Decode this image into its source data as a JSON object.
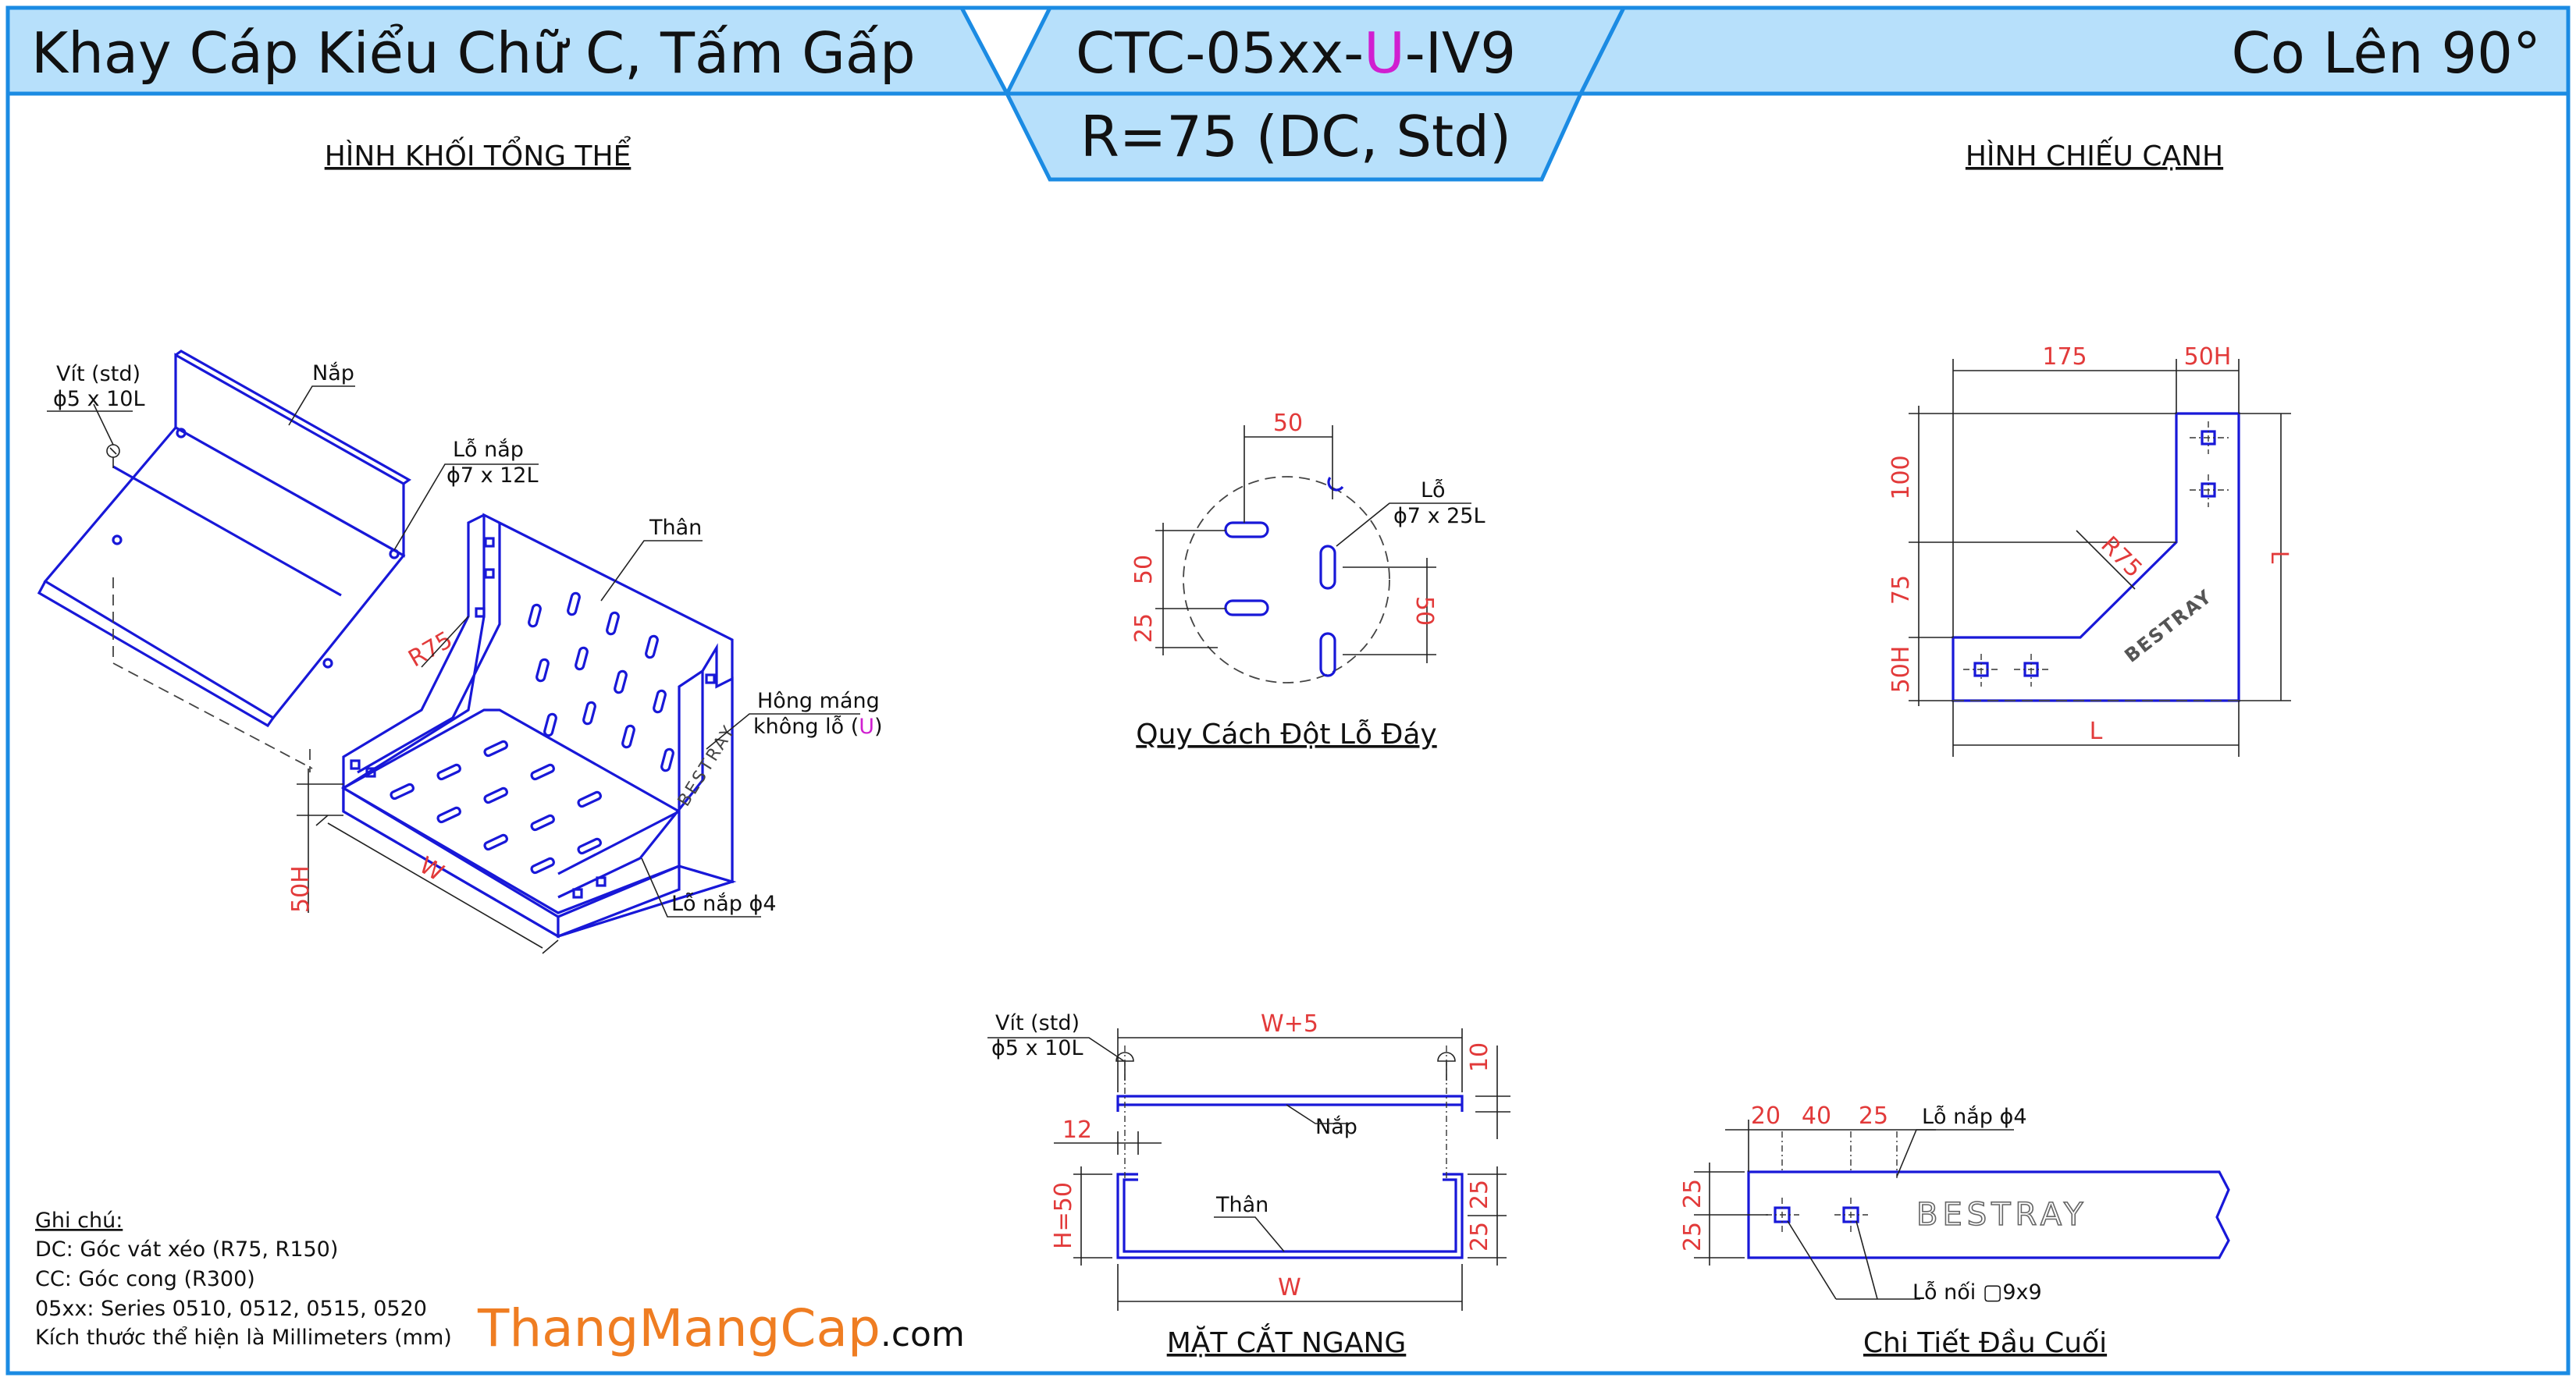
{
  "header": {
    "left_title": "Khay Cáp Kiểu Chữ C, Tấm Gấp",
    "code_prefix": "CTC-05xx-",
    "code_highlight": "U",
    "code_suffix": "-IV9",
    "radius_spec": "R=75 (DC, Std)",
    "right_title": "Co Lên 90°",
    "colors": {
      "band": "#b7e0fb",
      "border": "#1b8be3",
      "highlight": "#d01fd0"
    }
  },
  "views": {
    "iso_title": "HÌNH KHỐI TỔNG THỂ",
    "side_title": "HÌNH CHIẾU CẠNH",
    "hole_title": "Quy Cách Đột Lỗ Đáy",
    "section_title": "MẶT CẮT NGANG",
    "end_title": "Chi Tiết Đầu Cuối"
  },
  "iso": {
    "screw_label": "Vít (std)",
    "screw_size": "ϕ5 x 10L",
    "cover_label": "Nắp",
    "cover_hole_label": "Lỗ nắp",
    "cover_hole_size": "ϕ7 x 12L",
    "body_label": "Thân",
    "radius": "R75",
    "side_note_1": "Hông máng",
    "side_note_2_prefix": "không lỗ (",
    "side_note_2_highlight": "U",
    "side_note_2_suffix": ")",
    "cover_hole_bottom": "Lỗ nắp ϕ4",
    "height": "50H",
    "width": "W",
    "brand": "BESTRAY"
  },
  "hole_pattern": {
    "dim_top": "50",
    "hole_label": "Lỗ",
    "hole_size": "ϕ7 x 25L",
    "dim_left_top": "50",
    "dim_left_bottom": "25",
    "dim_right": "50"
  },
  "side_view": {
    "dim_175": "175",
    "dim_50h_top": "50H",
    "dim_100": "100",
    "dim_75": "75",
    "dim_50h_left": "50H",
    "radius": "R75",
    "dim_L_bottom": "L",
    "dim_L_right": "L",
    "brand": "BESTRAY"
  },
  "section": {
    "screw_label": "Vít (std)",
    "screw_size": "ϕ5 x 10L",
    "dim_w5": "W+5",
    "dim_10": "10",
    "dim_12": "12",
    "cover_label": "Nắp",
    "body_label": "Thân",
    "dim_h50": "H=50",
    "dim_25a": "25",
    "dim_25b": "25",
    "dim_w": "W"
  },
  "end_detail": {
    "dim_20": "20",
    "dim_40": "40",
    "dim_25": "25",
    "cover_hole": "Lỗ nắp ϕ4",
    "dim_25_left_a": "25",
    "dim_25_left_b": "25",
    "brand": "BESTRAY",
    "join_hole": "Lỗ nối ▢9x9"
  },
  "notes": {
    "heading": "Ghi chú:",
    "lines": [
      "DC: Góc vát xéo (R75, R150)",
      "CC: Góc cong (R300)",
      "05xx: Series 0510, 0512, 0515, 0520",
      "Kích thước thể hiện là Millimeters (mm)"
    ]
  },
  "watermark": {
    "main": "ThangMangCap",
    "suffix": ".com",
    "color": "#ef7d22"
  }
}
